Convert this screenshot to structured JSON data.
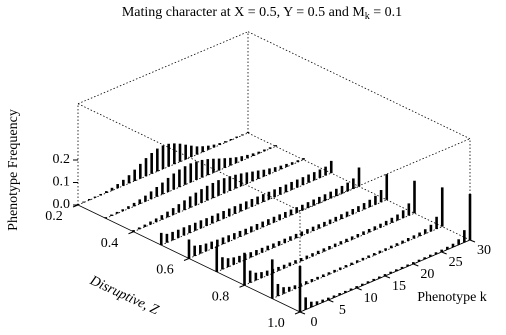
{
  "chart_data": {
    "type": "bar3d",
    "title_main": "Mating character at X = 0.5, Y = 0.5 and M",
    "title_sub": "k",
    "title_end": " = 0.1",
    "y_label": "Phenotype Frequency",
    "z_label": "Disruptive, Z",
    "x_label": "Phenotype k",
    "color": "#000000",
    "x": [
      0,
      1,
      2,
      3,
      4,
      5,
      6,
      7,
      8,
      9,
      10,
      11,
      12,
      13,
      14,
      15,
      16,
      17,
      18,
      19,
      20,
      21,
      22,
      23,
      24,
      25,
      26,
      27,
      28,
      29,
      30
    ],
    "series": [
      {
        "z": 0.2,
        "values": [
          0,
          0,
          0.001,
          0.001,
          0.002,
          0.004,
          0.008,
          0.014,
          0.022,
          0.032,
          0.046,
          0.061,
          0.076,
          0.088,
          0.097,
          0.1,
          0.097,
          0.088,
          0.076,
          0.061,
          0.046,
          0.032,
          0.022,
          0.014,
          0.008,
          0.004,
          0.002,
          0.001,
          0.001,
          0,
          0
        ]
      },
      {
        "z": 0.3,
        "values": [
          0.001,
          0.002,
          0.003,
          0.004,
          0.007,
          0.011,
          0.016,
          0.022,
          0.03,
          0.039,
          0.048,
          0.058,
          0.067,
          0.074,
          0.078,
          0.08,
          0.078,
          0.074,
          0.067,
          0.058,
          0.048,
          0.039,
          0.03,
          0.022,
          0.016,
          0.011,
          0.007,
          0.004,
          0.003,
          0.002,
          0.001
        ]
      },
      {
        "z": 0.4,
        "values": [
          0.003,
          0.004,
          0.006,
          0.009,
          0.012,
          0.016,
          0.021,
          0.026,
          0.033,
          0.039,
          0.046,
          0.052,
          0.057,
          0.061,
          0.063,
          0.065,
          0.063,
          0.061,
          0.057,
          0.052,
          0.046,
          0.039,
          0.033,
          0.026,
          0.021,
          0.016,
          0.012,
          0.009,
          0.006,
          0.004,
          0.003
        ]
      },
      {
        "z": 0.5,
        "values": [
          0.05,
          0.035,
          0.033,
          0.032,
          0.032,
          0.031,
          0.031,
          0.031,
          0.03,
          0.03,
          0.03,
          0.03,
          0.03,
          0.03,
          0.03,
          0.03,
          0.03,
          0.03,
          0.03,
          0.03,
          0.03,
          0.03,
          0.03,
          0.031,
          0.031,
          0.031,
          0.032,
          0.032,
          0.033,
          0.035,
          0.05
        ]
      },
      {
        "z": 0.6,
        "values": [
          0.08,
          0.042,
          0.034,
          0.03,
          0.028,
          0.026,
          0.025,
          0.024,
          0.023,
          0.022,
          0.021,
          0.021,
          0.021,
          0.021,
          0.021,
          0.021,
          0.021,
          0.021,
          0.021,
          0.021,
          0.021,
          0.022,
          0.023,
          0.024,
          0.025,
          0.026,
          0.028,
          0.03,
          0.034,
          0.042,
          0.08
        ]
      },
      {
        "z": 0.7,
        "values": [
          0.11,
          0.05,
          0.035,
          0.028,
          0.024,
          0.021,
          0.019,
          0.018,
          0.017,
          0.016,
          0.015,
          0.015,
          0.015,
          0.015,
          0.015,
          0.015,
          0.015,
          0.015,
          0.015,
          0.015,
          0.015,
          0.016,
          0.017,
          0.018,
          0.019,
          0.021,
          0.024,
          0.028,
          0.035,
          0.05,
          0.11
        ]
      },
      {
        "z": 0.8,
        "values": [
          0.14,
          0.05,
          0.03,
          0.022,
          0.018,
          0.015,
          0.013,
          0.012,
          0.011,
          0.011,
          0.01,
          0.01,
          0.01,
          0.01,
          0.01,
          0.01,
          0.01,
          0.01,
          0.01,
          0.01,
          0.01,
          0.011,
          0.011,
          0.012,
          0.013,
          0.015,
          0.018,
          0.022,
          0.03,
          0.05,
          0.14
        ]
      },
      {
        "z": 0.9,
        "values": [
          0.17,
          0.05,
          0.025,
          0.016,
          0.012,
          0.01,
          0.009,
          0.008,
          0.007,
          0.007,
          0.006,
          0.006,
          0.006,
          0.006,
          0.006,
          0.006,
          0.006,
          0.006,
          0.006,
          0.006,
          0.006,
          0.007,
          0.007,
          0.008,
          0.009,
          0.01,
          0.012,
          0.016,
          0.025,
          0.05,
          0.17
        ]
      },
      {
        "z": 1.0,
        "values": [
          0.2,
          0.05,
          0.02,
          0.011,
          0.008,
          0.006,
          0.005,
          0.005,
          0.004,
          0.004,
          0.004,
          0.004,
          0.004,
          0.004,
          0.004,
          0.004,
          0.004,
          0.004,
          0.004,
          0.004,
          0.004,
          0.004,
          0.004,
          0.005,
          0.005,
          0.006,
          0.008,
          0.011,
          0.02,
          0.05,
          0.2
        ]
      }
    ],
    "xlim": [
      0,
      30
    ],
    "xticks": [
      0,
      5,
      10,
      15,
      20,
      25,
      30
    ],
    "zlim": [
      0.2,
      1.0
    ],
    "zticks": [
      0.2,
      0.4,
      0.6,
      0.8,
      {
        "value": 1.0,
        "label": "1.0"
      }
    ],
    "ylim": [
      0,
      0.45
    ],
    "yticks": [
      {
        "value": 0,
        "label": "0.0"
      },
      {
        "value": 0.1,
        "label": "0.1"
      },
      {
        "value": 0.2,
        "label": "0.2"
      }
    ]
  }
}
